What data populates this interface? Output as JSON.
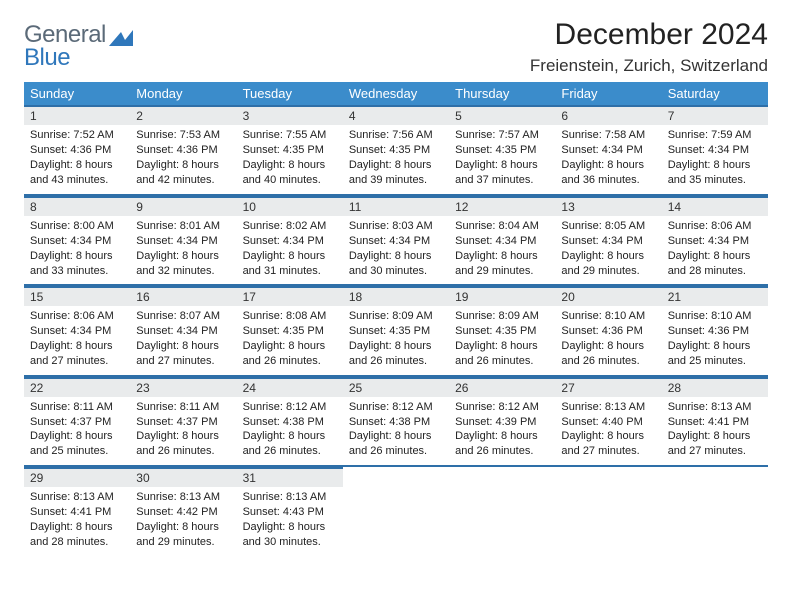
{
  "brand": {
    "line1": "General",
    "line2": "Blue"
  },
  "title": "December 2024",
  "location": "Freienstein, Zurich, Switzerland",
  "colors": {
    "header_bg": "#3b8ccb",
    "header_rule": "#2e6fa8",
    "daynum_bg": "#e9ebec",
    "brand_gray": "#5b6a78",
    "brand_blue": "#2f77bb"
  },
  "day_headers": [
    "Sunday",
    "Monday",
    "Tuesday",
    "Wednesday",
    "Thursday",
    "Friday",
    "Saturday"
  ],
  "weeks": [
    [
      {
        "n": "1",
        "sunrise": "Sunrise: 7:52 AM",
        "sunset": "Sunset: 4:36 PM",
        "d1": "Daylight: 8 hours",
        "d2": "and 43 minutes."
      },
      {
        "n": "2",
        "sunrise": "Sunrise: 7:53 AM",
        "sunset": "Sunset: 4:36 PM",
        "d1": "Daylight: 8 hours",
        "d2": "and 42 minutes."
      },
      {
        "n": "3",
        "sunrise": "Sunrise: 7:55 AM",
        "sunset": "Sunset: 4:35 PM",
        "d1": "Daylight: 8 hours",
        "d2": "and 40 minutes."
      },
      {
        "n": "4",
        "sunrise": "Sunrise: 7:56 AM",
        "sunset": "Sunset: 4:35 PM",
        "d1": "Daylight: 8 hours",
        "d2": "and 39 minutes."
      },
      {
        "n": "5",
        "sunrise": "Sunrise: 7:57 AM",
        "sunset": "Sunset: 4:35 PM",
        "d1": "Daylight: 8 hours",
        "d2": "and 37 minutes."
      },
      {
        "n": "6",
        "sunrise": "Sunrise: 7:58 AM",
        "sunset": "Sunset: 4:34 PM",
        "d1": "Daylight: 8 hours",
        "d2": "and 36 minutes."
      },
      {
        "n": "7",
        "sunrise": "Sunrise: 7:59 AM",
        "sunset": "Sunset: 4:34 PM",
        "d1": "Daylight: 8 hours",
        "d2": "and 35 minutes."
      }
    ],
    [
      {
        "n": "8",
        "sunrise": "Sunrise: 8:00 AM",
        "sunset": "Sunset: 4:34 PM",
        "d1": "Daylight: 8 hours",
        "d2": "and 33 minutes."
      },
      {
        "n": "9",
        "sunrise": "Sunrise: 8:01 AM",
        "sunset": "Sunset: 4:34 PM",
        "d1": "Daylight: 8 hours",
        "d2": "and 32 minutes."
      },
      {
        "n": "10",
        "sunrise": "Sunrise: 8:02 AM",
        "sunset": "Sunset: 4:34 PM",
        "d1": "Daylight: 8 hours",
        "d2": "and 31 minutes."
      },
      {
        "n": "11",
        "sunrise": "Sunrise: 8:03 AM",
        "sunset": "Sunset: 4:34 PM",
        "d1": "Daylight: 8 hours",
        "d2": "and 30 minutes."
      },
      {
        "n": "12",
        "sunrise": "Sunrise: 8:04 AM",
        "sunset": "Sunset: 4:34 PM",
        "d1": "Daylight: 8 hours",
        "d2": "and 29 minutes."
      },
      {
        "n": "13",
        "sunrise": "Sunrise: 8:05 AM",
        "sunset": "Sunset: 4:34 PM",
        "d1": "Daylight: 8 hours",
        "d2": "and 29 minutes."
      },
      {
        "n": "14",
        "sunrise": "Sunrise: 8:06 AM",
        "sunset": "Sunset: 4:34 PM",
        "d1": "Daylight: 8 hours",
        "d2": "and 28 minutes."
      }
    ],
    [
      {
        "n": "15",
        "sunrise": "Sunrise: 8:06 AM",
        "sunset": "Sunset: 4:34 PM",
        "d1": "Daylight: 8 hours",
        "d2": "and 27 minutes."
      },
      {
        "n": "16",
        "sunrise": "Sunrise: 8:07 AM",
        "sunset": "Sunset: 4:34 PM",
        "d1": "Daylight: 8 hours",
        "d2": "and 27 minutes."
      },
      {
        "n": "17",
        "sunrise": "Sunrise: 8:08 AM",
        "sunset": "Sunset: 4:35 PM",
        "d1": "Daylight: 8 hours",
        "d2": "and 26 minutes."
      },
      {
        "n": "18",
        "sunrise": "Sunrise: 8:09 AM",
        "sunset": "Sunset: 4:35 PM",
        "d1": "Daylight: 8 hours",
        "d2": "and 26 minutes."
      },
      {
        "n": "19",
        "sunrise": "Sunrise: 8:09 AM",
        "sunset": "Sunset: 4:35 PM",
        "d1": "Daylight: 8 hours",
        "d2": "and 26 minutes."
      },
      {
        "n": "20",
        "sunrise": "Sunrise: 8:10 AM",
        "sunset": "Sunset: 4:36 PM",
        "d1": "Daylight: 8 hours",
        "d2": "and 26 minutes."
      },
      {
        "n": "21",
        "sunrise": "Sunrise: 8:10 AM",
        "sunset": "Sunset: 4:36 PM",
        "d1": "Daylight: 8 hours",
        "d2": "and 25 minutes."
      }
    ],
    [
      {
        "n": "22",
        "sunrise": "Sunrise: 8:11 AM",
        "sunset": "Sunset: 4:37 PM",
        "d1": "Daylight: 8 hours",
        "d2": "and 25 minutes."
      },
      {
        "n": "23",
        "sunrise": "Sunrise: 8:11 AM",
        "sunset": "Sunset: 4:37 PM",
        "d1": "Daylight: 8 hours",
        "d2": "and 26 minutes."
      },
      {
        "n": "24",
        "sunrise": "Sunrise: 8:12 AM",
        "sunset": "Sunset: 4:38 PM",
        "d1": "Daylight: 8 hours",
        "d2": "and 26 minutes."
      },
      {
        "n": "25",
        "sunrise": "Sunrise: 8:12 AM",
        "sunset": "Sunset: 4:38 PM",
        "d1": "Daylight: 8 hours",
        "d2": "and 26 minutes."
      },
      {
        "n": "26",
        "sunrise": "Sunrise: 8:12 AM",
        "sunset": "Sunset: 4:39 PM",
        "d1": "Daylight: 8 hours",
        "d2": "and 26 minutes."
      },
      {
        "n": "27",
        "sunrise": "Sunrise: 8:13 AM",
        "sunset": "Sunset: 4:40 PM",
        "d1": "Daylight: 8 hours",
        "d2": "and 27 minutes."
      },
      {
        "n": "28",
        "sunrise": "Sunrise: 8:13 AM",
        "sunset": "Sunset: 4:41 PM",
        "d1": "Daylight: 8 hours",
        "d2": "and 27 minutes."
      }
    ],
    [
      {
        "n": "29",
        "sunrise": "Sunrise: 8:13 AM",
        "sunset": "Sunset: 4:41 PM",
        "d1": "Daylight: 8 hours",
        "d2": "and 28 minutes."
      },
      {
        "n": "30",
        "sunrise": "Sunrise: 8:13 AM",
        "sunset": "Sunset: 4:42 PM",
        "d1": "Daylight: 8 hours",
        "d2": "and 29 minutes."
      },
      {
        "n": "31",
        "sunrise": "Sunrise: 8:13 AM",
        "sunset": "Sunset: 4:43 PM",
        "d1": "Daylight: 8 hours",
        "d2": "and 30 minutes."
      },
      {
        "empty": true
      },
      {
        "empty": true
      },
      {
        "empty": true
      },
      {
        "empty": true
      }
    ]
  ]
}
